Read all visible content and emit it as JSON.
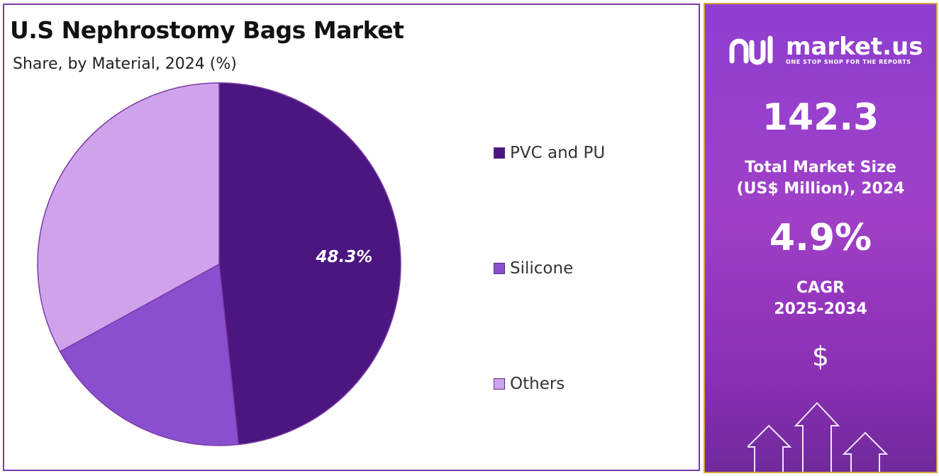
{
  "chart": {
    "title": "U.S Nephrostomy Bags Market",
    "subtitle": "Share, by Material, 2024 (%)"
  },
  "chart_data": {
    "type": "pie",
    "title": "U.S Nephrostomy Bags Market",
    "subtitle": "Share, by Material, 2024 (%)",
    "categories": [
      "PVC and PU",
      "Silicone",
      "Others"
    ],
    "values": [
      48.3,
      18.7,
      33.0
    ],
    "data_labels": [
      "48.3%",
      "",
      ""
    ],
    "colors": [
      "#4b167f",
      "#8a4fcf",
      "#cfa3ec"
    ],
    "legend_position": "right"
  },
  "legend": [
    {
      "label": "PVC and PU",
      "color": "#4b167f"
    },
    {
      "label": "Silicone",
      "color": "#8a4fcf"
    },
    {
      "label": "Others",
      "color": "#cfa3ec"
    }
  ],
  "info": {
    "brand_name": "market.us",
    "brand_tagline": "ONE STOP SHOP FOR THE REPORTS",
    "market_size_value": "142.3",
    "market_size_label_line1": "Total Market Size",
    "market_size_label_line2": "(US$ Million), 2024",
    "cagr_value": "4.9%",
    "cagr_label_line1": "CAGR",
    "cagr_label_line2": "2025-2034",
    "currency_symbol": "$"
  }
}
